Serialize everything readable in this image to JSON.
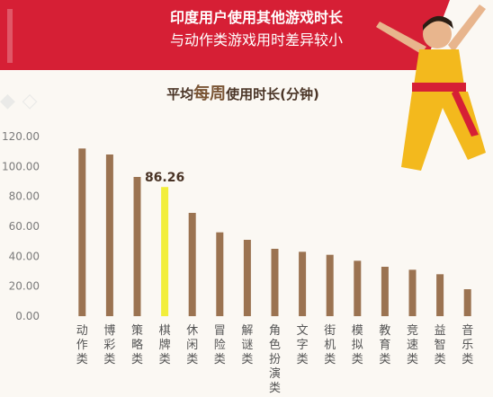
{
  "banner": {
    "line1": "印度用户使用其他游戏时长",
    "line2": "与动作类游戏用时差异较小"
  },
  "subtitle": {
    "before": "平均",
    "emph": "每周",
    "after": "使用时长(分钟)"
  },
  "colors": {
    "banner_red": "#d61f35",
    "bar": "#9b7351",
    "highlight_bar": "#f2ee3a",
    "axis_text": "#7b7b7b"
  },
  "chart_data": {
    "type": "bar",
    "title": "平均每周使用时长(分钟)",
    "categories": [
      "动作类",
      "博彩类",
      "策略类",
      "棋牌类",
      "休闲类",
      "冒险类",
      "解谜类",
      "角色扮演类",
      "文字类",
      "街机类",
      "模拟类",
      "教育类",
      "竞速类",
      "益智类",
      "音乐类"
    ],
    "values": [
      112,
      108,
      93,
      86.26,
      69,
      56,
      51,
      45,
      43,
      41,
      37,
      33,
      31,
      28,
      18
    ],
    "highlight_index": 3,
    "highlight_label": "86.26",
    "ylim": [
      0,
      120
    ],
    "yticks": [
      "0.00",
      "20.00",
      "40.00",
      "60.00",
      "80.00",
      "100.00",
      "120.00"
    ],
    "grid": false,
    "legend": "none"
  }
}
